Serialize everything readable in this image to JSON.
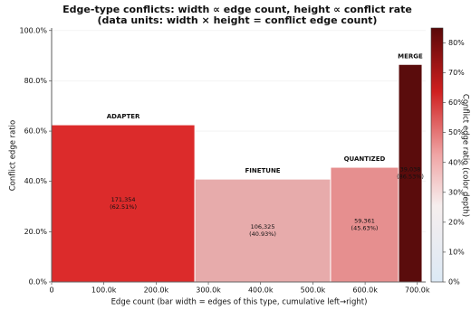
{
  "chart_data": {
    "type": "marimekko",
    "title": "Edge-type conflicts: width ∝ edge count, height ∝ conflict rate",
    "subtitle": "(data units: width × height = conflict edge count)",
    "x_label": "Edge count (bar width = edges of this type, cumulative left→right)",
    "y_label": "Conflict edge ratio",
    "colorbar_label": "Conflict edge ratio (color depth)",
    "categories": [
      "ADAPTER",
      "FINETUNE",
      "QUANTIZED",
      "MERGE"
    ],
    "widths": [
      274122,
      259773,
      130092,
      45115
    ],
    "values": [
      62.51,
      40.93,
      45.63,
      86.53
    ],
    "value_labels": [
      "(62.51%)",
      "(40.93%)",
      "(45.63%)",
      "(86.53%)"
    ],
    "counts": [
      171354,
      106325,
      59361,
      39038
    ],
    "count_labels": [
      "171,354",
      "106,325",
      "59,361",
      "39,038"
    ],
    "colors": [
      "#dc2b2b",
      "#e7abab",
      "#e68f8f",
      "#5a0c0c"
    ],
    "xlim": [
      0,
      716000
    ],
    "ylim": [
      0,
      101
    ],
    "xticks": [
      {
        "value": 0,
        "label": "0"
      },
      {
        "value": 100000,
        "label": "100.0k"
      },
      {
        "value": 200000,
        "label": "200.0k"
      },
      {
        "value": 300000,
        "label": "300.0k"
      },
      {
        "value": 400000,
        "label": "400.0k"
      },
      {
        "value": 500000,
        "label": "500.0k"
      },
      {
        "value": 600000,
        "label": "600.0k"
      },
      {
        "value": 700000,
        "label": "700.0k"
      }
    ],
    "yticks": [
      {
        "value": 0,
        "label": "0.0%"
      },
      {
        "value": 20,
        "label": "20.0%"
      },
      {
        "value": 40,
        "label": "40.0%"
      },
      {
        "value": 60,
        "label": "60.0%"
      },
      {
        "value": 80,
        "label": "80.0%"
      },
      {
        "value": 100,
        "label": "100.0%"
      }
    ],
    "clim": [
      0,
      85
    ],
    "cticks": [
      {
        "value": 0,
        "label": "0%"
      },
      {
        "value": 10,
        "label": "10%"
      },
      {
        "value": 20,
        "label": "20%"
      },
      {
        "value": 30,
        "label": "30%"
      },
      {
        "value": 40,
        "label": "40%"
      },
      {
        "value": 50,
        "label": "50%"
      },
      {
        "value": 60,
        "label": "60%"
      },
      {
        "value": 70,
        "label": "70%"
      },
      {
        "value": 80,
        "label": "80%"
      }
    ],
    "grid": true
  }
}
